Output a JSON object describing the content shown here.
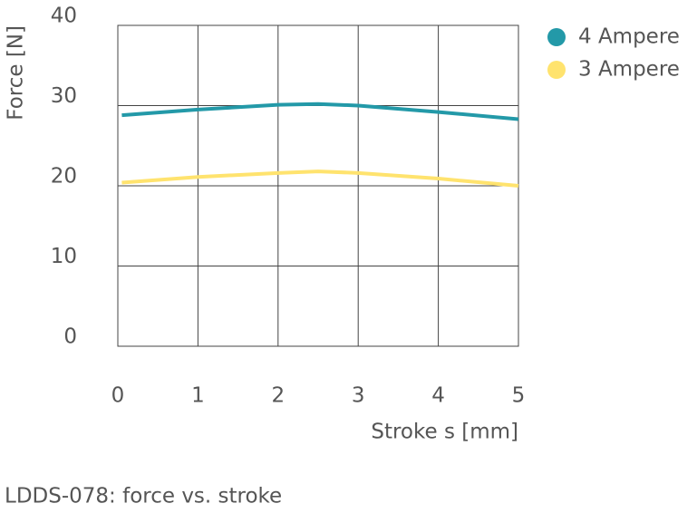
{
  "chart_data": {
    "type": "line",
    "x_label": "Stroke s [mm]",
    "y_label": "Force [N]",
    "caption": "LDDS-078: force vs. stroke",
    "x": [
      0.05,
      1,
      2,
      2.5,
      3,
      4,
      5
    ],
    "series": [
      {
        "name": "4 Ampere",
        "color": "#2399a8",
        "values": [
          28.8,
          29.5,
          30.1,
          30.2,
          30.0,
          29.2,
          28.3
        ]
      },
      {
        "name": "3 Ampere",
        "color": "#ffe36e",
        "values": [
          20.4,
          21.1,
          21.6,
          21.8,
          21.6,
          20.9,
          20.0
        ]
      }
    ],
    "xlim": [
      0,
      5
    ],
    "xticks": [
      0,
      1,
      2,
      3,
      4,
      5
    ],
    "ylim": [
      0,
      40
    ],
    "yticks": [
      0,
      10,
      20,
      30,
      40
    ],
    "grid": true,
    "legend": "right"
  }
}
